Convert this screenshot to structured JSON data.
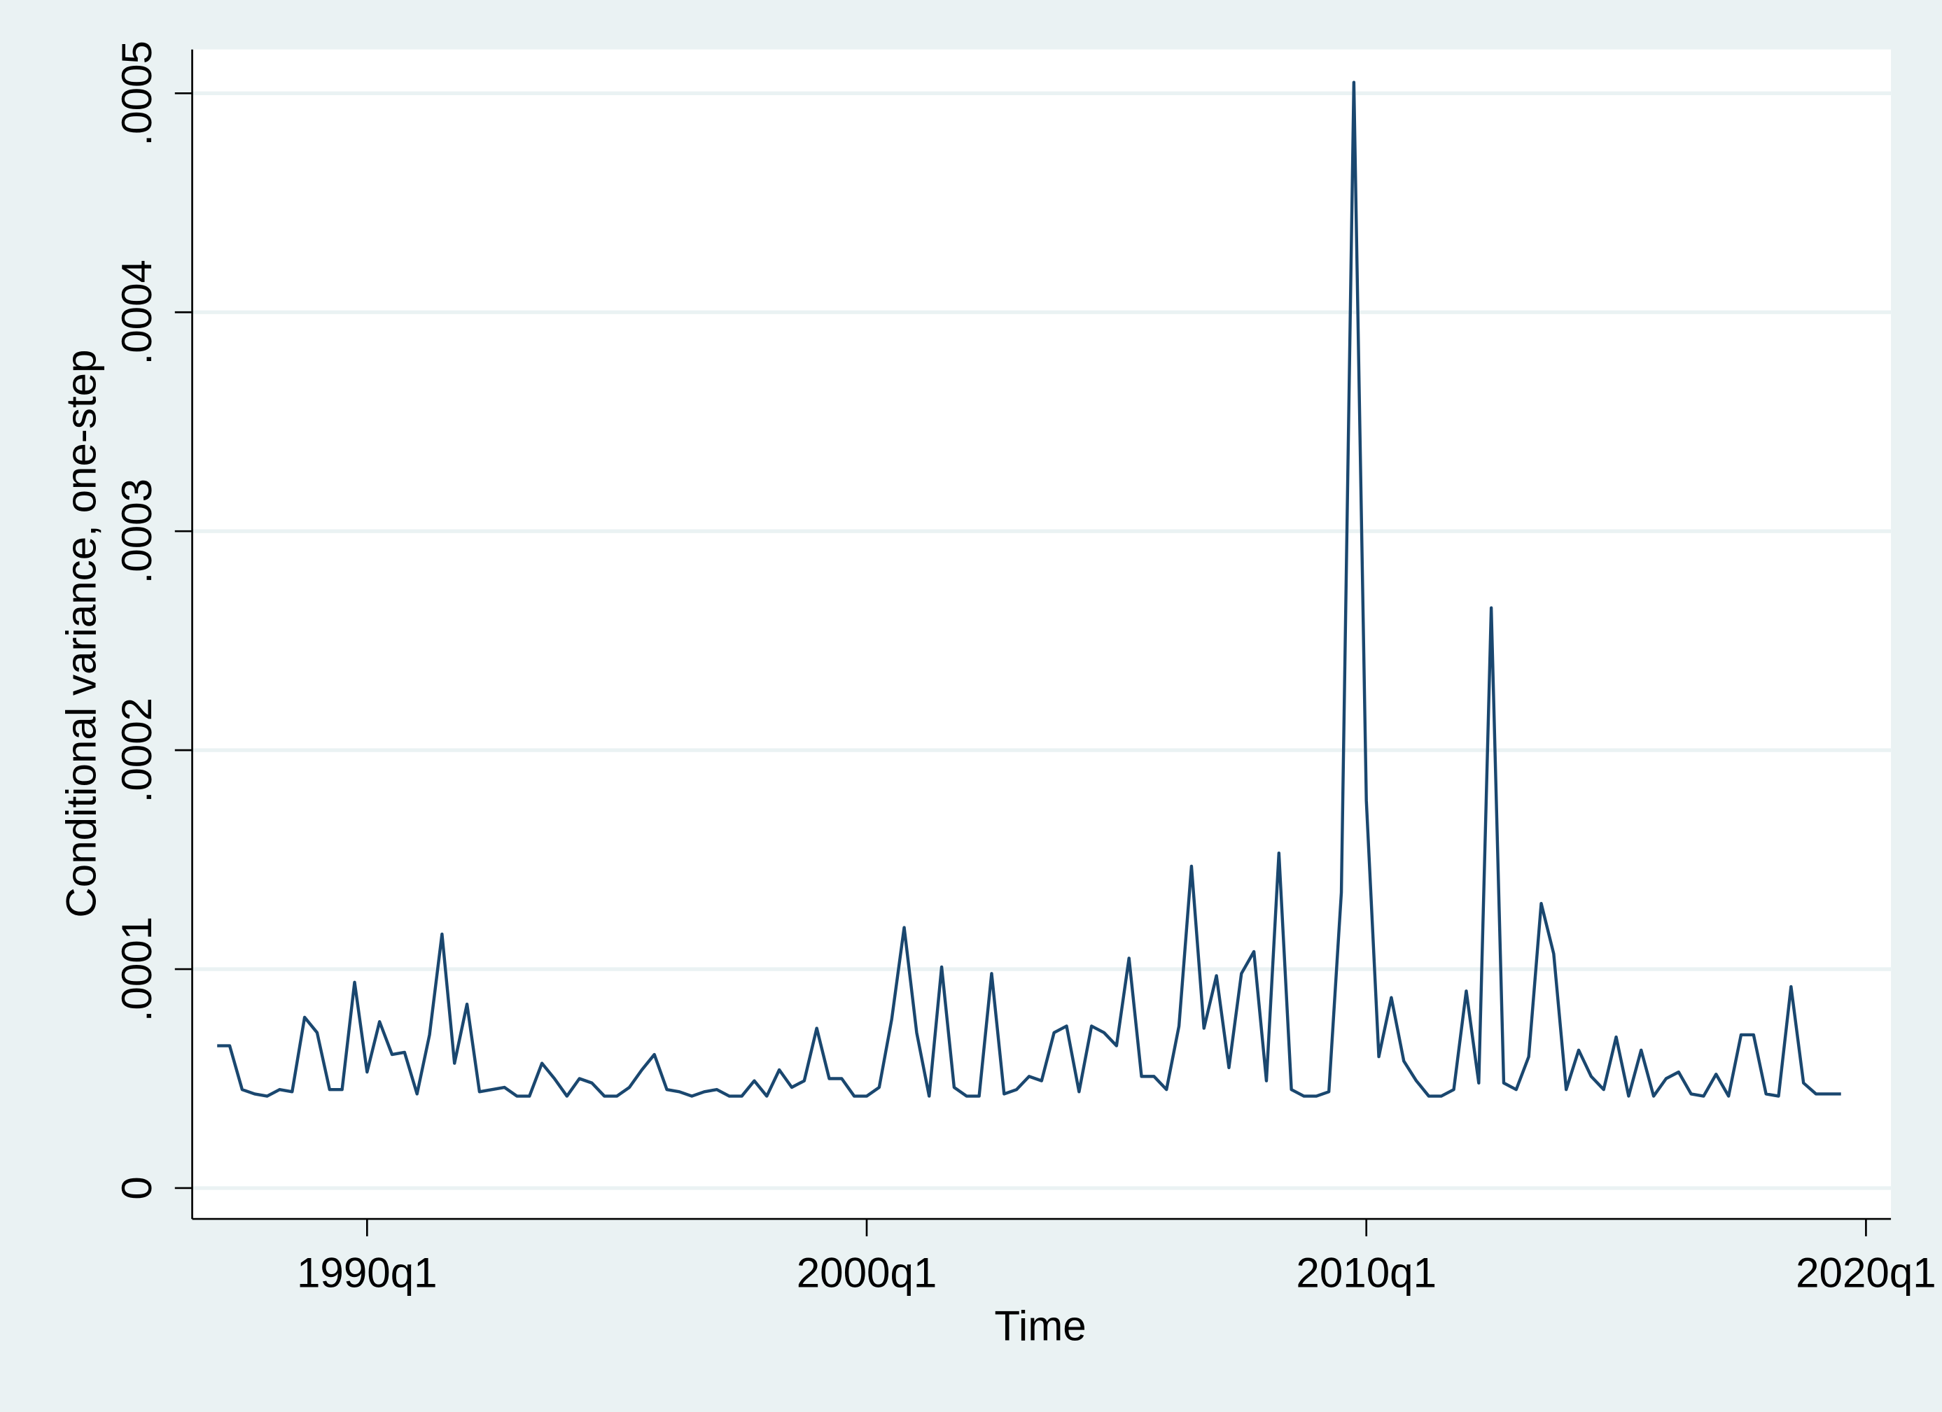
{
  "chart_data": {
    "type": "line",
    "y_label": "Conditional variance, one-step",
    "x_label": "Time",
    "x": [
      "1987q1",
      "1987q2",
      "1987q3",
      "1987q4",
      "1988q1",
      "1988q2",
      "1988q3",
      "1988q4",
      "1989q1",
      "1989q2",
      "1989q3",
      "1989q4",
      "1990q1",
      "1990q2",
      "1990q3",
      "1990q4",
      "1991q1",
      "1991q2",
      "1991q3",
      "1991q4",
      "1992q1",
      "1992q2",
      "1992q3",
      "1992q4",
      "1993q1",
      "1993q2",
      "1993q3",
      "1993q4",
      "1994q1",
      "1994q2",
      "1994q3",
      "1994q4",
      "1995q1",
      "1995q2",
      "1995q3",
      "1995q4",
      "1996q1",
      "1996q2",
      "1996q3",
      "1996q4",
      "1997q1",
      "1997q2",
      "1997q3",
      "1997q4",
      "1998q1",
      "1998q2",
      "1998q3",
      "1998q4",
      "1999q1",
      "1999q2",
      "1999q3",
      "1999q4",
      "2000q1",
      "2000q2",
      "2000q3",
      "2000q4",
      "2001q1",
      "2001q2",
      "2001q3",
      "2001q4",
      "2002q1",
      "2002q2",
      "2002q3",
      "2002q4",
      "2003q1",
      "2003q2",
      "2003q3",
      "2003q4",
      "2004q1",
      "2004q2",
      "2004q3",
      "2004q4",
      "2005q1",
      "2005q2",
      "2005q3",
      "2005q4",
      "2006q1",
      "2006q2",
      "2006q3",
      "2006q4",
      "2007q1",
      "2007q2",
      "2007q3",
      "2007q4",
      "2008q1",
      "2008q2",
      "2008q3",
      "2008q4",
      "2009q1",
      "2009q2",
      "2009q3",
      "2009q4",
      "2010q1",
      "2010q2",
      "2010q3",
      "2010q4",
      "2011q1",
      "2011q2",
      "2011q3",
      "2011q4",
      "2012q1",
      "2012q2",
      "2012q3",
      "2012q4",
      "2013q1",
      "2013q2",
      "2013q3",
      "2013q4",
      "2014q1",
      "2014q2",
      "2014q3",
      "2014q4",
      "2015q1",
      "2015q2",
      "2015q3",
      "2015q4",
      "2016q1",
      "2016q2",
      "2016q3",
      "2016q4",
      "2017q1",
      "2017q2",
      "2017q3",
      "2017q4",
      "2018q1",
      "2018q2",
      "2018q3",
      "2018q4",
      "2019q1",
      "2019q2",
      "2019q3"
    ],
    "values": [
      6.5e-05,
      6.5e-05,
      4.5e-05,
      4.3e-05,
      4.2e-05,
      4.5e-05,
      4.4e-05,
      7.8e-05,
      7.1e-05,
      4.5e-05,
      4.5e-05,
      9.4e-05,
      5.3e-05,
      7.6e-05,
      6.1e-05,
      6.2e-05,
      4.3e-05,
      7e-05,
      0.000116,
      5.7e-05,
      8.4e-05,
      4.4e-05,
      4.5e-05,
      4.6e-05,
      4.2e-05,
      4.2e-05,
      5.7e-05,
      5e-05,
      4.2e-05,
      5e-05,
      4.8e-05,
      4.2e-05,
      4.2e-05,
      4.6e-05,
      5.4e-05,
      6.1e-05,
      4.5e-05,
      4.4e-05,
      4.2e-05,
      4.4e-05,
      4.5e-05,
      4.2e-05,
      4.2e-05,
      4.9e-05,
      4.2e-05,
      5.4e-05,
      4.6e-05,
      4.9e-05,
      7.3e-05,
      5e-05,
      5e-05,
      4.2e-05,
      4.2e-05,
      4.6e-05,
      7.7e-05,
      0.000119,
      7.1e-05,
      4.2e-05,
      0.000101,
      4.6e-05,
      4.2e-05,
      4.2e-05,
      9.8e-05,
      4.3e-05,
      4.5e-05,
      5.1e-05,
      4.9e-05,
      7.1e-05,
      7.4e-05,
      4.4e-05,
      7.4e-05,
      7.1e-05,
      6.5e-05,
      0.000105,
      5.1e-05,
      5.1e-05,
      4.5e-05,
      7.4e-05,
      0.000147,
      7.3e-05,
      9.7e-05,
      5.5e-05,
      9.8e-05,
      0.000108,
      4.9e-05,
      0.000153,
      4.5e-05,
      4.2e-05,
      4.2e-05,
      4.4e-05,
      0.000135,
      0.000505,
      0.000177,
      6e-05,
      8.7e-05,
      5.8e-05,
      4.9e-05,
      4.2e-05,
      4.2e-05,
      4.5e-05,
      9e-05,
      4.8e-05,
      0.000265,
      4.8e-05,
      4.5e-05,
      6e-05,
      0.00013,
      0.000107,
      4.5e-05,
      6.3e-05,
      5.1e-05,
      4.5e-05,
      6.9e-05,
      4.2e-05,
      6.3e-05,
      4.2e-05,
      5e-05,
      5.3e-05,
      4.3e-05,
      4.2e-05,
      5.2e-05,
      4.2e-05,
      7e-05,
      7e-05,
      4.3e-05,
      4.2e-05,
      9.2e-05,
      4.8e-05,
      4.3e-05,
      4.3e-05,
      4.3e-05
    ],
    "color": "#1a476f",
    "xlim": [
      "1986q3",
      "2020q3"
    ],
    "xticks": [
      "1990q1",
      "2000q1",
      "2010q1",
      "2020q1"
    ],
    "ylim": [
      -1.41e-05,
      0.00052
    ],
    "yticks": [
      0,
      {
        "value": 0.0001,
        "label": ".0001"
      },
      {
        "value": 0.0002,
        "label": ".0002"
      },
      {
        "value": 0.0003,
        "label": ".0003"
      },
      {
        "value": 0.0004,
        "label": ".0004"
      },
      {
        "value": 0.0005,
        "label": ".0005"
      }
    ],
    "grid": true
  }
}
